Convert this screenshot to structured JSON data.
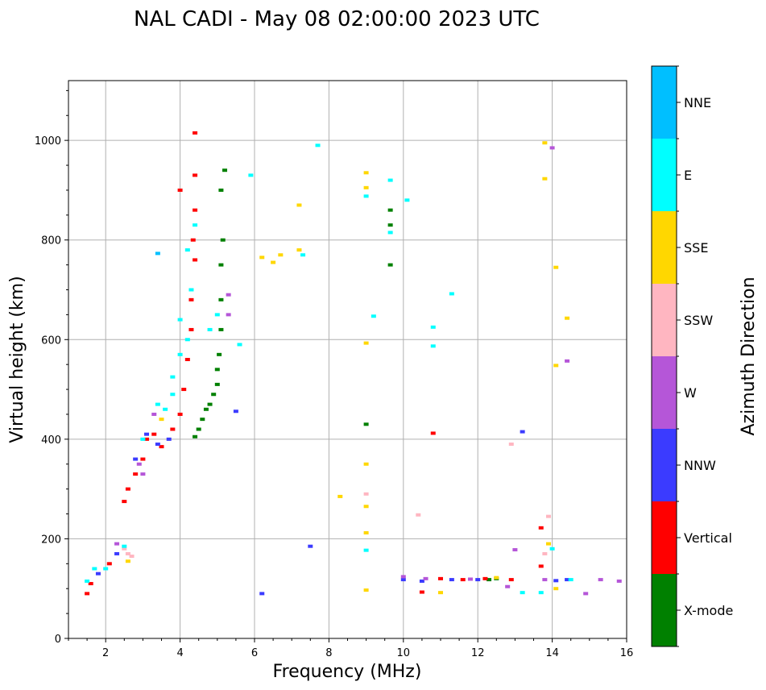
{
  "chart_data": {
    "type": "scatter",
    "title": "NAL CADI - May 08 02:00:00 2023 UTC",
    "xlabel": "Frequency (MHz)",
    "ylabel": "Virtual height (km)",
    "xlim": [
      1,
      16
    ],
    "ylim": [
      0,
      1120
    ],
    "xticks": [
      2,
      4,
      6,
      8,
      10,
      12,
      14,
      16
    ],
    "yticks": [
      0,
      200,
      400,
      600,
      800,
      1000
    ],
    "grid": true,
    "colorbar": {
      "label": "Azimuth Direction",
      "categories": [
        "X-mode",
        "Vertical",
        "NNW",
        "W",
        "SSW",
        "SSE",
        "E",
        "NNE"
      ],
      "colors": [
        "#008000",
        "#ff0000",
        "#3b3bff",
        "#b556d8",
        "#ffb6c1",
        "#ffd700",
        "#00ffff",
        "#00bfff"
      ]
    },
    "series": [
      {
        "name": "X-mode",
        "points": [
          [
            4.4,
            405
          ],
          [
            4.5,
            420
          ],
          [
            4.6,
            440
          ],
          [
            4.7,
            460
          ],
          [
            4.8,
            470
          ],
          [
            4.9,
            490
          ],
          [
            5.0,
            510
          ],
          [
            5.0,
            540
          ],
          [
            5.05,
            570
          ],
          [
            5.1,
            620
          ],
          [
            5.1,
            680
          ],
          [
            5.1,
            750
          ],
          [
            5.15,
            800
          ],
          [
            5.1,
            900
          ],
          [
            5.2,
            940
          ],
          [
            9.65,
            860
          ],
          [
            9.65,
            830
          ],
          [
            9.65,
            750
          ],
          [
            12.3,
            118
          ],
          [
            12.5,
            120
          ],
          [
            9.0,
            430
          ]
        ]
      },
      {
        "name": "Vertical",
        "points": [
          [
            1.5,
            90
          ],
          [
            1.6,
            110
          ],
          [
            2.1,
            150
          ],
          [
            2.5,
            275
          ],
          [
            2.6,
            300
          ],
          [
            2.8,
            330
          ],
          [
            3.0,
            360
          ],
          [
            3.1,
            400
          ],
          [
            3.3,
            410
          ],
          [
            3.5,
            385
          ],
          [
            3.8,
            420
          ],
          [
            4.0,
            450
          ],
          [
            4.1,
            500
          ],
          [
            4.2,
            560
          ],
          [
            4.3,
            620
          ],
          [
            4.3,
            680
          ],
          [
            4.4,
            760
          ],
          [
            4.35,
            800
          ],
          [
            4.4,
            860
          ],
          [
            4.4,
            930
          ],
          [
            4.0,
            900
          ],
          [
            4.4,
            1015
          ],
          [
            10.5,
            93
          ],
          [
            11.0,
            120
          ],
          [
            11.6,
            118
          ],
          [
            12.2,
            120
          ],
          [
            12.9,
            118
          ],
          [
            13.7,
            145
          ],
          [
            13.7,
            222
          ],
          [
            10.8,
            412
          ]
        ]
      },
      {
        "name": "NNW",
        "points": [
          [
            1.8,
            130
          ],
          [
            2.3,
            170
          ],
          [
            2.8,
            360
          ],
          [
            3.1,
            410
          ],
          [
            3.4,
            390
          ],
          [
            3.7,
            400
          ],
          [
            5.5,
            456
          ],
          [
            6.2,
            90
          ],
          [
            7.5,
            185
          ],
          [
            10.0,
            118
          ],
          [
            10.5,
            115
          ],
          [
            11.3,
            118
          ],
          [
            12.0,
            118
          ],
          [
            13.2,
            415
          ],
          [
            14.1,
            116
          ],
          [
            14.4,
            118
          ]
        ]
      },
      {
        "name": "W",
        "points": [
          [
            2.3,
            190
          ],
          [
            2.9,
            350
          ],
          [
            3.0,
            330
          ],
          [
            3.3,
            450
          ],
          [
            5.3,
            690
          ],
          [
            5.3,
            650
          ],
          [
            10.0,
            124
          ],
          [
            10.6,
            120
          ],
          [
            11.8,
            119
          ],
          [
            12.8,
            104
          ],
          [
            13.0,
            178
          ],
          [
            14.0,
            985
          ],
          [
            14.4,
            557
          ],
          [
            14.9,
            90
          ],
          [
            15.3,
            118
          ],
          [
            15.8,
            115
          ],
          [
            13.8,
            118
          ]
        ]
      },
      {
        "name": "SSW",
        "points": [
          [
            2.5,
            180
          ],
          [
            2.6,
            170
          ],
          [
            2.7,
            165
          ],
          [
            9.0,
            290
          ],
          [
            10.4,
            248
          ],
          [
            12.9,
            390
          ],
          [
            13.8,
            170
          ],
          [
            13.9,
            245
          ]
        ]
      },
      {
        "name": "SSE",
        "points": [
          [
            2.6,
            155
          ],
          [
            3.5,
            440
          ],
          [
            6.2,
            765
          ],
          [
            6.5,
            755
          ],
          [
            6.7,
            770
          ],
          [
            7.2,
            870
          ],
          [
            7.2,
            780
          ],
          [
            8.3,
            285
          ],
          [
            9.0,
            935
          ],
          [
            9.0,
            905
          ],
          [
            9.0,
            593
          ],
          [
            9.0,
            350
          ],
          [
            9.0,
            265
          ],
          [
            9.0,
            212
          ],
          [
            9.0,
            97
          ],
          [
            11.0,
            92
          ],
          [
            12.5,
            122
          ],
          [
            13.8,
            995
          ],
          [
            13.8,
            923
          ],
          [
            14.1,
            745
          ],
          [
            14.4,
            643
          ],
          [
            14.1,
            548
          ],
          [
            13.9,
            190
          ],
          [
            14.1,
            100
          ]
        ]
      },
      {
        "name": "E",
        "points": [
          [
            1.5,
            115
          ],
          [
            1.7,
            140
          ],
          [
            2.0,
            140
          ],
          [
            2.5,
            185
          ],
          [
            3.0,
            400
          ],
          [
            3.4,
            470
          ],
          [
            3.6,
            460
          ],
          [
            3.8,
            490
          ],
          [
            3.8,
            525
          ],
          [
            4.0,
            570
          ],
          [
            4.2,
            600
          ],
          [
            4.0,
            640
          ],
          [
            4.3,
            700
          ],
          [
            4.2,
            780
          ],
          [
            4.4,
            830
          ],
          [
            4.8,
            620
          ],
          [
            5.0,
            650
          ],
          [
            5.6,
            590
          ],
          [
            5.9,
            930
          ],
          [
            7.3,
            770
          ],
          [
            7.7,
            990
          ],
          [
            9.0,
            888
          ],
          [
            9.2,
            647
          ],
          [
            9.65,
            815
          ],
          [
            9.65,
            920
          ],
          [
            10.1,
            880
          ],
          [
            10.8,
            625
          ],
          [
            10.8,
            587
          ],
          [
            11.3,
            692
          ],
          [
            9.0,
            177
          ],
          [
            13.2,
            92
          ],
          [
            13.7,
            92
          ],
          [
            14.0,
            180
          ],
          [
            14.5,
            118
          ]
        ]
      },
      {
        "name": "NNE",
        "points": [
          [
            3.4,
            773
          ]
        ]
      }
    ]
  }
}
